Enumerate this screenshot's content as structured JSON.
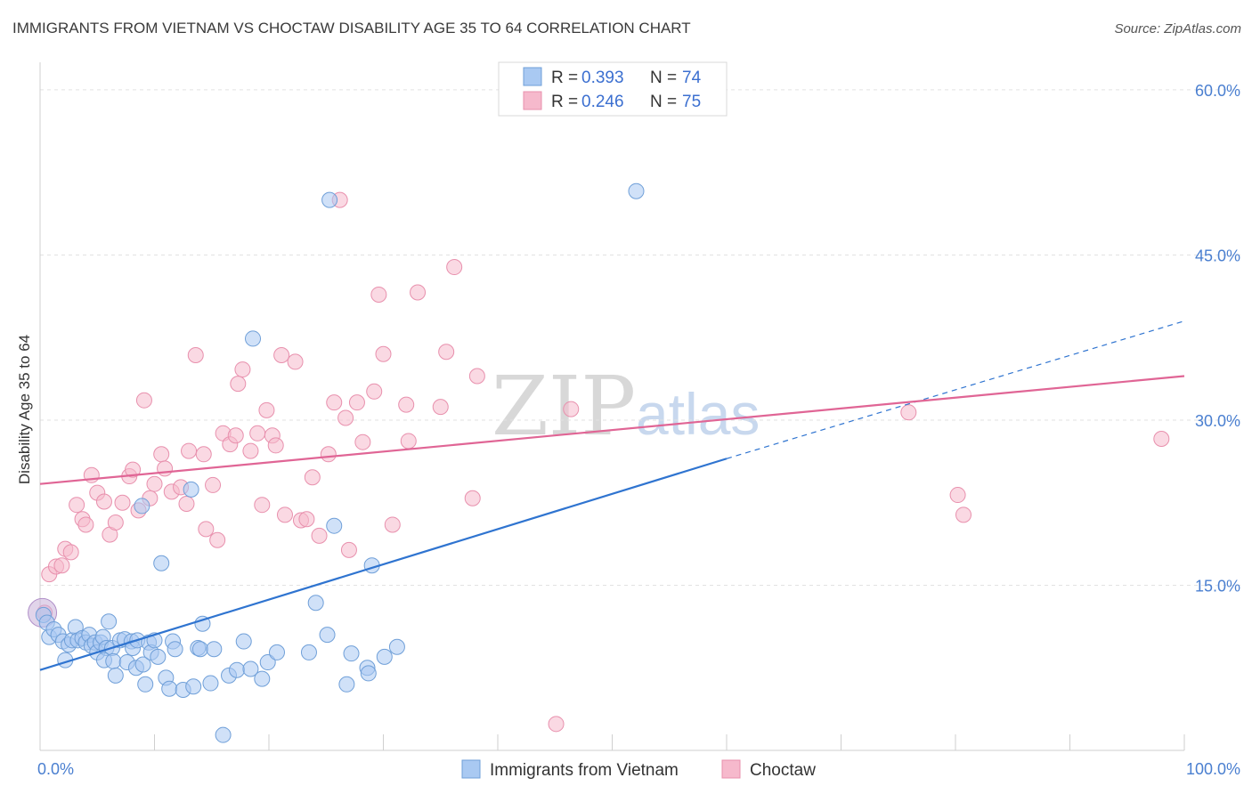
{
  "header": {
    "title": "IMMIGRANTS FROM VIETNAM VS CHOCTAW DISABILITY AGE 35 TO 64 CORRELATION CHART",
    "source": "Source: ZipAtlas.com"
  },
  "watermark": {
    "zip": "ZIP",
    "atlas": "atlas"
  },
  "colors": {
    "blue_fill": "#a9c9f2",
    "blue_stroke": "#6f9fd8",
    "blue_line": "#2f74d0",
    "pink_fill": "#f6b9cc",
    "pink_stroke": "#e890ad",
    "pink_line": "#e06595",
    "grid": "#e2e2e2",
    "tick_label": "#4a7fd0"
  },
  "legend": {
    "rows": [
      {
        "r_label": "R =",
        "r_value": "0.393",
        "n_label": "N =",
        "n_value": "74"
      },
      {
        "r_label": "R =",
        "r_value": "0.246",
        "n_label": "N =",
        "n_value": "75"
      }
    ]
  },
  "chart_data": {
    "type": "scatter",
    "title": "IMMIGRANTS FROM VIETNAM VS CHOCTAW DISABILITY AGE 35 TO 64 CORRELATION CHART",
    "xlabel": "",
    "ylabel": "Disability Age 35 to 64",
    "xlim": [
      0,
      100
    ],
    "ylim": [
      0,
      62.5
    ],
    "x_tick_labels": [
      "0.0%",
      "100.0%"
    ],
    "y_ticks": [
      15,
      30,
      45,
      60
    ],
    "y_tick_labels": [
      "15.0%",
      "30.0%",
      "45.0%",
      "60.0%"
    ],
    "grid": true,
    "legend_position": "top-center",
    "series": [
      {
        "name": "Immigrants from Vietnam",
        "stats": {
          "R": 0.393,
          "N": 74
        },
        "trend": {
          "x0": 0,
          "y0": 7.3,
          "x1": 60,
          "y1": 26.5,
          "dash_to_x": 100,
          "dash_to_y": 39.0
        },
        "points": [
          [
            0.3,
            12.3
          ],
          [
            0.6,
            11.6
          ],
          [
            0.8,
            10.3
          ],
          [
            1.2,
            11.0
          ],
          [
            1.6,
            10.5
          ],
          [
            2.0,
            9.9
          ],
          [
            2.2,
            8.2
          ],
          [
            2.5,
            9.6
          ],
          [
            2.8,
            10.0
          ],
          [
            3.1,
            11.2
          ],
          [
            3.3,
            10.0
          ],
          [
            3.7,
            10.2
          ],
          [
            4.0,
            9.8
          ],
          [
            4.3,
            10.5
          ],
          [
            4.5,
            9.5
          ],
          [
            4.8,
            9.8
          ],
          [
            5.0,
            8.9
          ],
          [
            5.3,
            9.8
          ],
          [
            5.5,
            10.3
          ],
          [
            5.8,
            9.3
          ],
          [
            5.6,
            8.2
          ],
          [
            6.0,
            11.7
          ],
          [
            6.3,
            9.3
          ],
          [
            6.4,
            8.1
          ],
          [
            6.6,
            6.8
          ],
          [
            7.0,
            10.0
          ],
          [
            7.4,
            10.1
          ],
          [
            7.6,
            8.0
          ],
          [
            8.0,
            9.9
          ],
          [
            8.1,
            9.3
          ],
          [
            8.4,
            7.5
          ],
          [
            8.5,
            10.0
          ],
          [
            8.9,
            22.2
          ],
          [
            9.0,
            7.8
          ],
          [
            9.2,
            6.0
          ],
          [
            9.5,
            9.8
          ],
          [
            9.7,
            8.9
          ],
          [
            10.0,
            10.0
          ],
          [
            10.3,
            8.5
          ],
          [
            10.6,
            17.0
          ],
          [
            11.0,
            6.6
          ],
          [
            11.3,
            5.6
          ],
          [
            11.6,
            9.9
          ],
          [
            11.8,
            9.2
          ],
          [
            12.5,
            5.5
          ],
          [
            13.2,
            23.7
          ],
          [
            13.4,
            5.8
          ],
          [
            13.8,
            9.3
          ],
          [
            14.0,
            9.2
          ],
          [
            14.2,
            11.5
          ],
          [
            14.9,
            6.1
          ],
          [
            15.2,
            9.2
          ],
          [
            16.0,
            1.4
          ],
          [
            16.5,
            6.8
          ],
          [
            17.2,
            7.3
          ],
          [
            17.8,
            9.9
          ],
          [
            18.4,
            7.4
          ],
          [
            18.6,
            37.4
          ],
          [
            19.4,
            6.5
          ],
          [
            19.9,
            8.0
          ],
          [
            20.7,
            8.9
          ],
          [
            23.5,
            8.9
          ],
          [
            24.1,
            13.4
          ],
          [
            25.1,
            10.5
          ],
          [
            25.3,
            50.0
          ],
          [
            25.7,
            20.4
          ],
          [
            26.8,
            6.0
          ],
          [
            27.2,
            8.8
          ],
          [
            28.6,
            7.5
          ],
          [
            28.7,
            7.0
          ],
          [
            29.0,
            16.8
          ],
          [
            30.1,
            8.5
          ],
          [
            31.2,
            9.4
          ],
          [
            52.1,
            50.8
          ]
        ]
      },
      {
        "name": "Choctaw",
        "stats": {
          "R": 0.246,
          "N": 75
        },
        "trend": {
          "x0": 0,
          "y0": 24.2,
          "x1": 100,
          "y1": 34.0
        },
        "points": [
          [
            0.4,
            12.5
          ],
          [
            0.8,
            16.0
          ],
          [
            1.4,
            16.7
          ],
          [
            1.9,
            16.8
          ],
          [
            2.2,
            18.3
          ],
          [
            2.7,
            18.0
          ],
          [
            3.2,
            22.3
          ],
          [
            3.7,
            21.0
          ],
          [
            4.0,
            20.5
          ],
          [
            4.5,
            25.0
          ],
          [
            5.0,
            23.4
          ],
          [
            5.6,
            22.6
          ],
          [
            6.1,
            19.6
          ],
          [
            6.6,
            20.7
          ],
          [
            7.2,
            22.5
          ],
          [
            7.8,
            24.9
          ],
          [
            8.1,
            25.5
          ],
          [
            8.6,
            21.8
          ],
          [
            9.1,
            31.8
          ],
          [
            9.6,
            22.9
          ],
          [
            10.0,
            24.2
          ],
          [
            10.6,
            26.9
          ],
          [
            10.9,
            25.6
          ],
          [
            11.5,
            23.5
          ],
          [
            12.3,
            23.9
          ],
          [
            12.8,
            22.4
          ],
          [
            13.0,
            27.2
          ],
          [
            13.6,
            35.9
          ],
          [
            14.3,
            26.9
          ],
          [
            14.5,
            20.1
          ],
          [
            15.1,
            24.1
          ],
          [
            15.5,
            19.1
          ],
          [
            16.0,
            28.8
          ],
          [
            16.6,
            27.8
          ],
          [
            17.1,
            28.6
          ],
          [
            17.3,
            33.3
          ],
          [
            17.7,
            34.6
          ],
          [
            18.4,
            27.2
          ],
          [
            19.0,
            28.8
          ],
          [
            19.4,
            22.3
          ],
          [
            19.8,
            30.9
          ],
          [
            20.3,
            28.6
          ],
          [
            20.6,
            27.7
          ],
          [
            21.1,
            35.9
          ],
          [
            21.4,
            21.4
          ],
          [
            22.3,
            35.3
          ],
          [
            22.8,
            20.9
          ],
          [
            23.3,
            21.0
          ],
          [
            23.8,
            24.8
          ],
          [
            24.4,
            19.5
          ],
          [
            25.2,
            26.9
          ],
          [
            25.7,
            31.6
          ],
          [
            26.2,
            50.0
          ],
          [
            26.7,
            30.2
          ],
          [
            27.0,
            18.2
          ],
          [
            27.7,
            31.6
          ],
          [
            28.2,
            28.0
          ],
          [
            29.2,
            32.6
          ],
          [
            29.6,
            41.4
          ],
          [
            30.0,
            36.0
          ],
          [
            30.8,
            20.5
          ],
          [
            32.0,
            31.4
          ],
          [
            32.2,
            28.1
          ],
          [
            33.0,
            41.6
          ],
          [
            35.0,
            31.2
          ],
          [
            35.5,
            36.2
          ],
          [
            36.2,
            43.9
          ],
          [
            37.8,
            22.9
          ],
          [
            38.2,
            34.0
          ],
          [
            45.1,
            2.4
          ],
          [
            46.4,
            31.0
          ],
          [
            75.9,
            30.7
          ],
          [
            80.2,
            23.2
          ],
          [
            80.7,
            21.4
          ],
          [
            98.0,
            28.3
          ]
        ]
      }
    ],
    "bottom_legend": [
      "Immigrants from Vietnam",
      "Choctaw"
    ]
  }
}
